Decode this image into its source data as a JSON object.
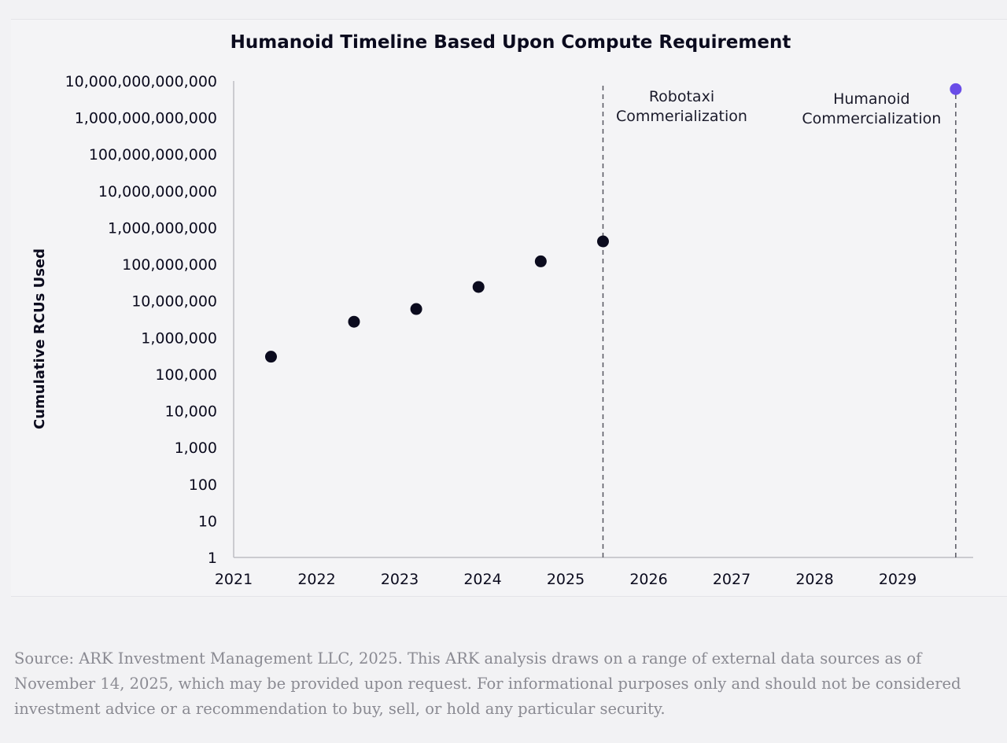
{
  "chart_data": {
    "type": "scatter",
    "title": "Humanoid Timeline Based Upon Compute Requirement",
    "xlabel": "",
    "ylabel": "Cumulative RCUs Used",
    "y_scale": "log",
    "xlim": [
      2021,
      2029.9
    ],
    "ylim": [
      1,
      10000000000000
    ],
    "x_ticks": [
      "2021",
      "2022",
      "2023",
      "2024",
      "2025",
      "2026",
      "2027",
      "2028",
      "2029"
    ],
    "y_ticks": [
      "1",
      "10",
      "100",
      "1,000",
      "10,000",
      "100,000",
      "1,000,000",
      "10,000,000",
      "100,000,000",
      "1,000,000,000",
      "10,000,000,000",
      "100,000,000,000",
      "1,000,000,000,000",
      "10,000,000,000,000"
    ],
    "grid": false,
    "series": [
      {
        "color": "#0b0b1e",
        "points": [
          {
            "x": 2021.45,
            "y": 300000
          },
          {
            "x": 2022.45,
            "y": 2700000
          },
          {
            "x": 2023.2,
            "y": 6000000
          },
          {
            "x": 2023.95,
            "y": 24000000
          },
          {
            "x": 2024.7,
            "y": 120000000
          },
          {
            "x": 2025.45,
            "y": 420000000
          }
        ]
      },
      {
        "color": "#6a4de8",
        "points": [
          {
            "x": 2029.7,
            "y": 6000000000000
          }
        ]
      }
    ],
    "annotations": [
      {
        "x": 2025.45,
        "lines": [
          "Robotaxi",
          "Commerialization"
        ]
      },
      {
        "x": 2029.7,
        "lines": [
          "Humanoid",
          "Commercialization"
        ]
      }
    ]
  },
  "source_note": "Source: ARK Investment Management LLC, 2025. This ARK analysis draws on a range of external data sources as of November 14, 2025, which may be provided upon request. For informational purposes only and should not be considered investment advice or a recommendation to buy, sell, or hold any particular security."
}
